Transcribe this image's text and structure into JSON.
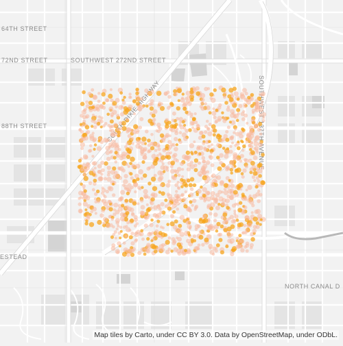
{
  "map": {
    "labels": {
      "street_264": "64TH STREET",
      "street_272_west": "72ND STREET",
      "street_272": "SOUTHWEST 272ND STREET",
      "street_288": "88TH STREET",
      "highway": "COUTH DIXIE HIGHWAY",
      "ave_137": "SOUTHWEST 137TH AVENUE",
      "homestead": "ESTEAD",
      "canal": "NORTH CANAL D"
    },
    "colors": {
      "background": "#f2f2f2",
      "road": "#ffffff",
      "major_road": "#ffffff",
      "block": "#e6e6e6",
      "parking": "#d9d9d9",
      "point_light": "#f7b9a0",
      "point_dense": "#f7a51e"
    }
  },
  "attribution": "Map tiles by Carto, under CC BY 3.0. Data by OpenStreetMap, under ODbL."
}
